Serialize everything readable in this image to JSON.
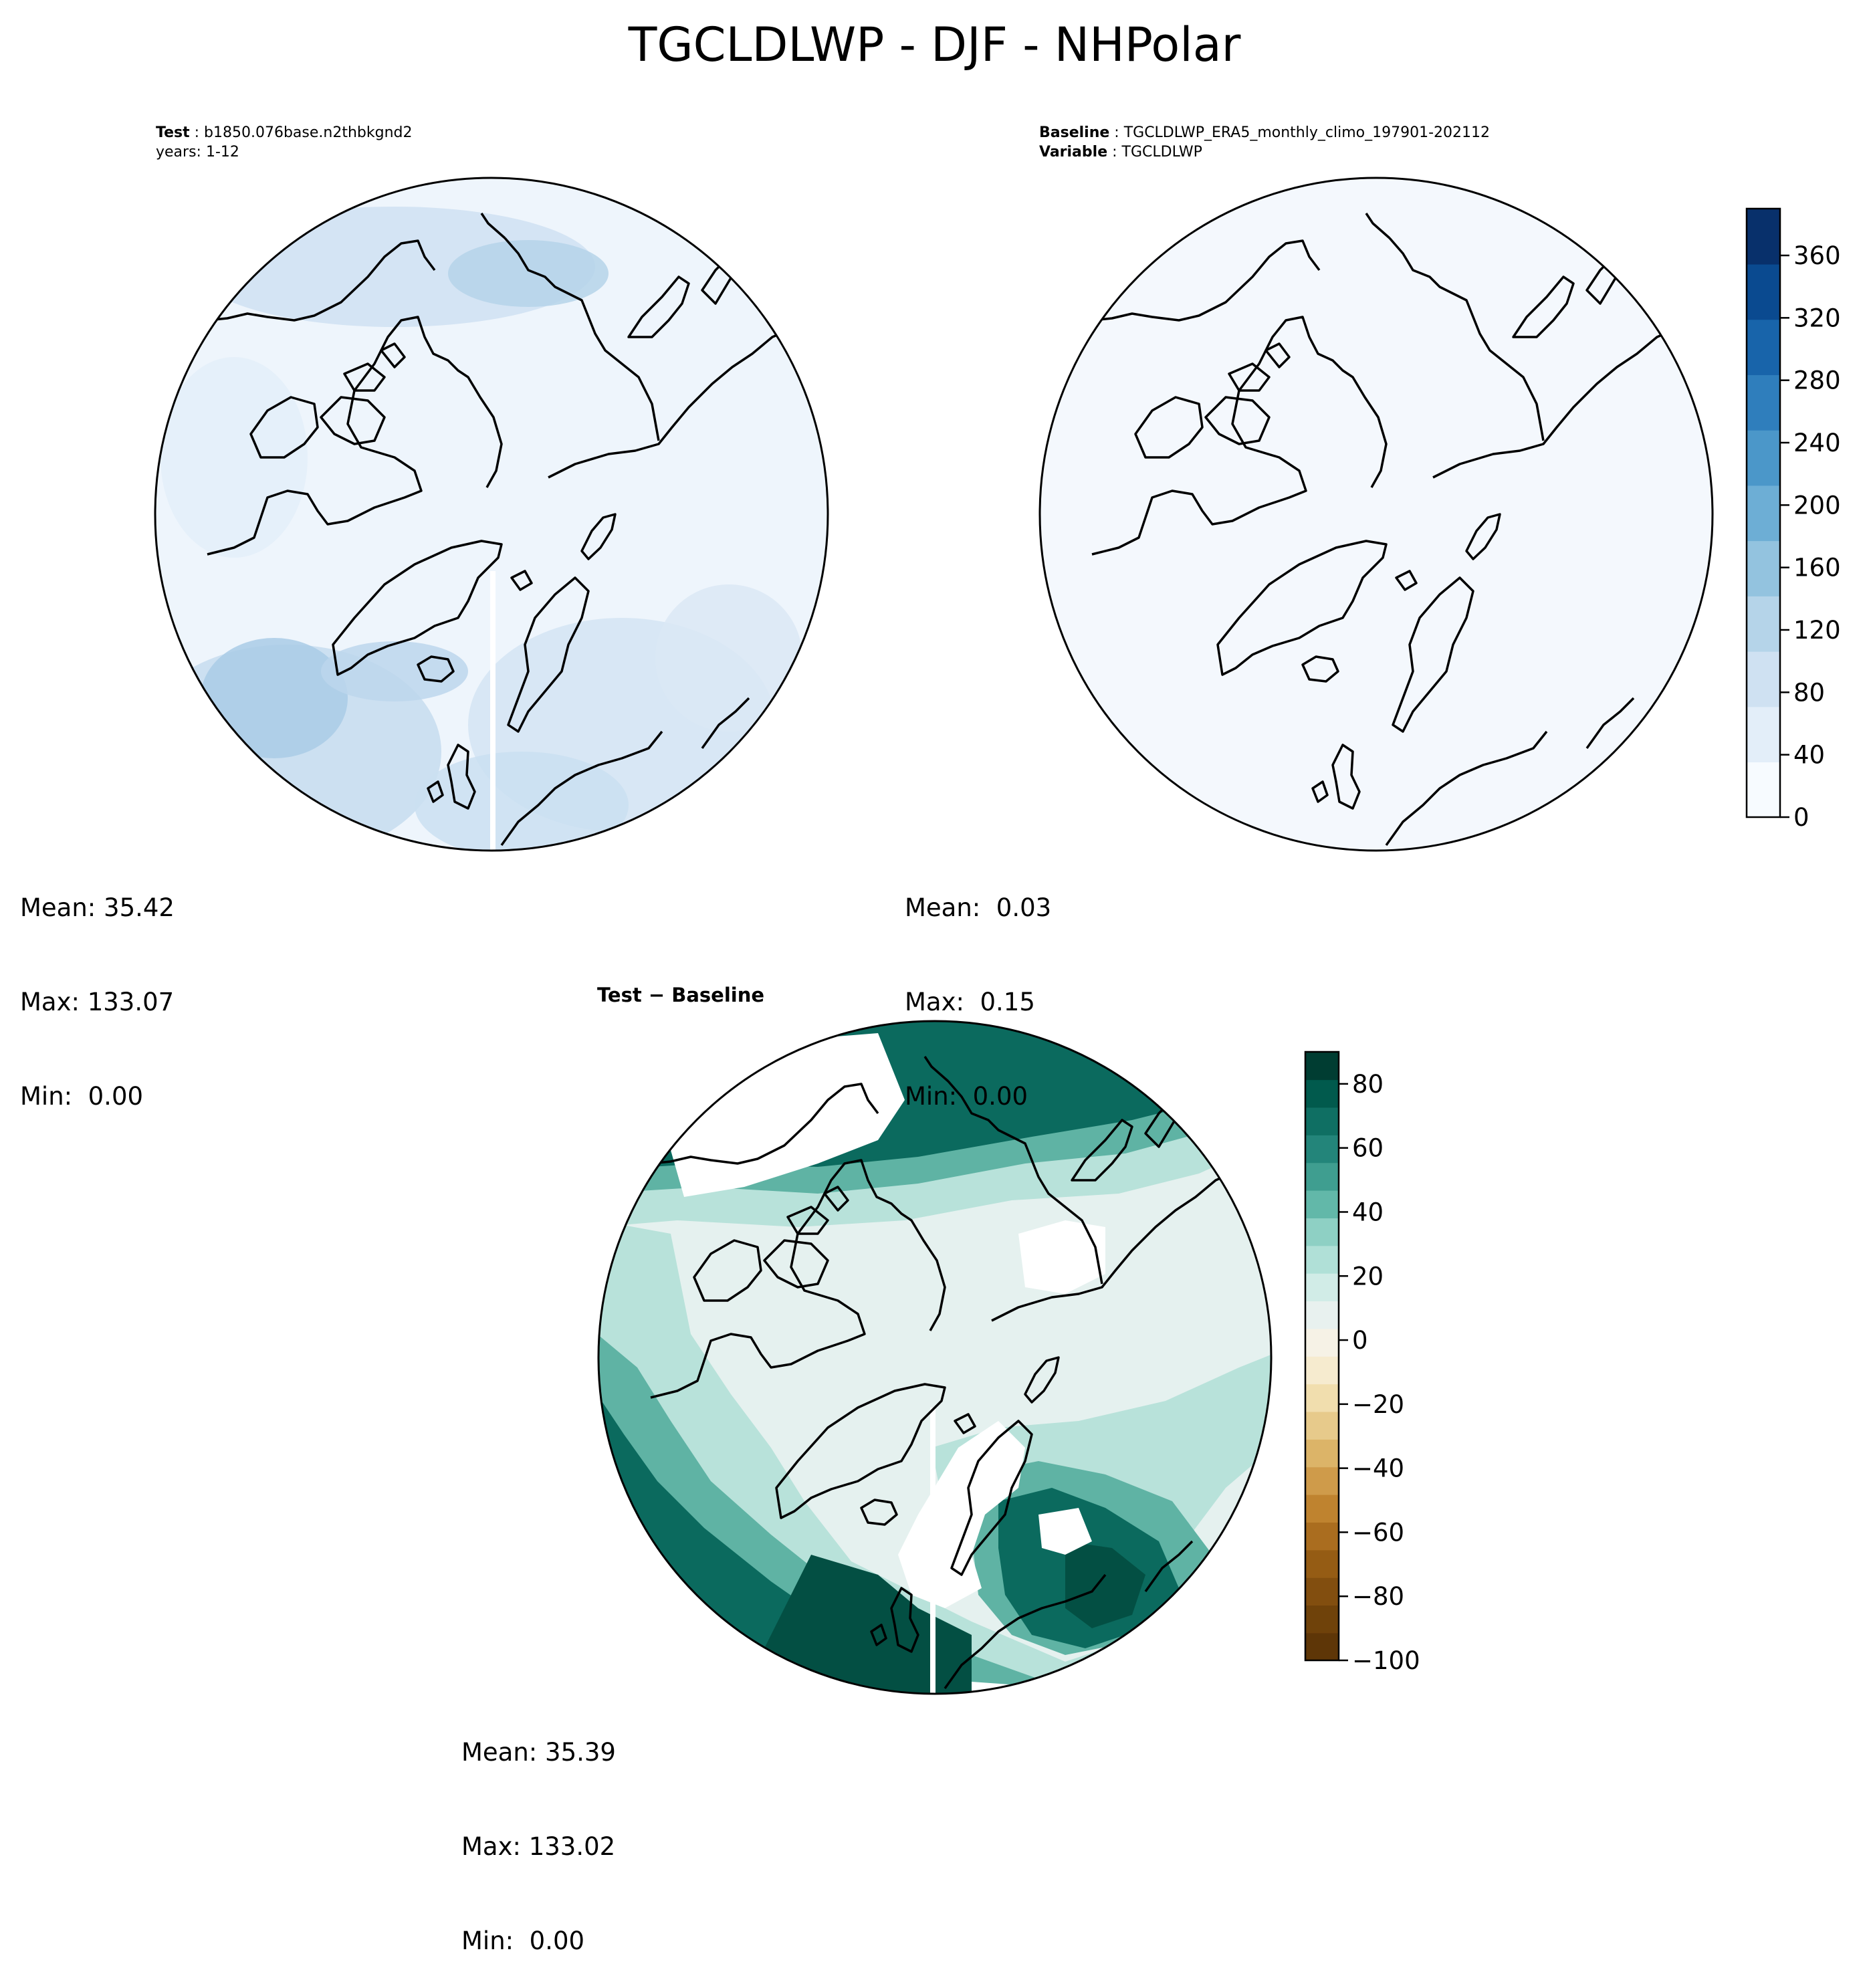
{
  "figure": {
    "title": "TGCLDLWP - DJF - NHPolar"
  },
  "test_panel": {
    "label_key": "Test",
    "case_name": "b1850.076base.n2thbkgnd2",
    "years_line": "years: 1-12",
    "stats": {
      "mean": "Mean: 35.42",
      "max": "Max: 133.07",
      "min": "Min:  0.00"
    }
  },
  "baseline_panel": {
    "label_key": "Baseline",
    "case_name": "TGCLDLWP_ERA5_monthly_climo_197901-202112",
    "variable_key": "Variable",
    "variable_name": "TGCLDLWP",
    "stats": {
      "mean": "Mean:  0.03",
      "max": "Max:  0.15",
      "min": "Min:  0.00"
    }
  },
  "diff_panel": {
    "title": "Test − Baseline",
    "stats": {
      "mean": "Mean: 35.39",
      "max": "Max: 133.02",
      "min": "Min:  0.00"
    }
  },
  "colorbars": {
    "values": {
      "colormap": "Blues",
      "range": [
        0,
        390
      ],
      "ticks": [
        0,
        40,
        80,
        120,
        160,
        200,
        240,
        280,
        320,
        360
      ],
      "tick_labels": [
        "0",
        "40",
        "80",
        "120",
        "160",
        "200",
        "240",
        "280",
        "320",
        "360"
      ],
      "colors": [
        "#f7fbff",
        "#e3eef9",
        "#cfe1f2",
        "#b5d4e9",
        "#93c3df",
        "#6daed5",
        "#4b97c9",
        "#2f7ebc",
        "#1864aa",
        "#0a4a90",
        "#08306b"
      ]
    },
    "difference": {
      "colormap": "BrBG",
      "range": [
        -100,
        90
      ],
      "ticks": [
        -100,
        -80,
        -60,
        -40,
        -20,
        0,
        20,
        40,
        60,
        80
      ],
      "tick_labels": [
        "−100",
        "−80",
        "−60",
        "−40",
        "−20",
        "0",
        "20",
        "40",
        "60",
        "80"
      ],
      "colors": [
        "#5e3607",
        "#6f420a",
        "#824e0f",
        "#955c14",
        "#aa6d1f",
        "#bf832f",
        "#cf9b4a",
        "#dcb468",
        "#e7ca8b",
        "#f1deae",
        "#f6ebcf",
        "#f6f2e6",
        "#e8f1ef",
        "#d1ece7",
        "#b0e0d7",
        "#8ed0c4",
        "#62b8a9",
        "#3f9e90",
        "#23857a",
        "#0f6f63",
        "#015a4d",
        "#003d32"
      ]
    }
  },
  "colors": {
    "coastline": "#000000",
    "test_fill": "#dbe9f6",
    "baseline_fill": "#f4f8fd",
    "diff_fill": "#e5f1ef",
    "diff_strong": "#0b6a5e",
    "diff_dark": "#034f43",
    "diff_mid": "#5fb3a4",
    "diff_light": "#b8e2da"
  }
}
